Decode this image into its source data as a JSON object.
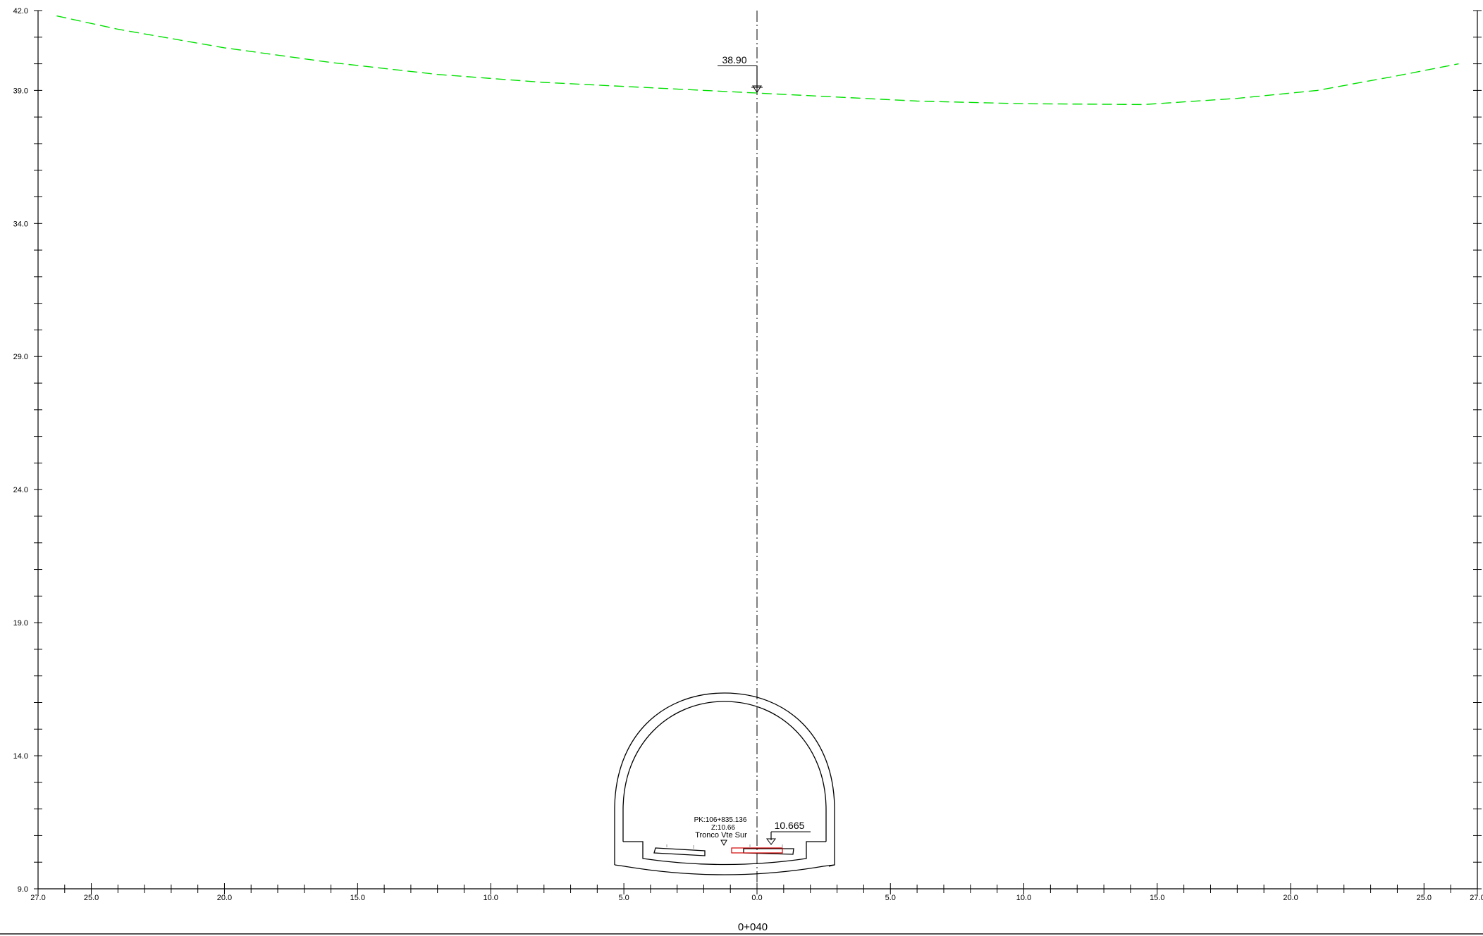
{
  "section": {
    "station": "0+040",
    "y_axis": {
      "min": 9.0,
      "max": 42.0,
      "labels": [
        "42.0",
        "39.0",
        "34.0",
        "29.0",
        "24.0",
        "19.0",
        "14.0",
        "9.0"
      ],
      "label_values": [
        42.0,
        39.0,
        34.0,
        29.0,
        24.0,
        19.0,
        14.0,
        9.0
      ],
      "minor_step": 1.0
    },
    "x_axis": {
      "min": -27.0,
      "max": 27.0,
      "labels": [
        "27.0",
        "25.0",
        "20.0",
        "15.0",
        "10.0",
        "5.0",
        "0.0",
        "5.0",
        "10.0",
        "15.0",
        "20.0",
        "25.0",
        "27.0"
      ],
      "label_values": [
        -27,
        -25,
        -20,
        -15,
        -10,
        -5,
        0,
        5,
        10,
        15,
        20,
        25,
        27
      ],
      "minor_step": 1.0
    },
    "terrain": {
      "color": "#00e000",
      "style": "dashed",
      "x": [
        -26.3,
        -24,
        -20,
        -16,
        -12,
        -8,
        -4,
        0,
        3,
        6,
        10,
        14.5,
        18,
        21,
        24,
        26.3
      ],
      "y": [
        41.8,
        41.3,
        40.6,
        40.05,
        39.6,
        39.3,
        39.1,
        38.9,
        38.75,
        38.6,
        38.5,
        38.47,
        38.7,
        39.0,
        39.55,
        40.0
      ]
    },
    "ground_level_marker": {
      "label": "38.90",
      "value": 38.9,
      "x": 0.0
    },
    "rail_level_marker": {
      "label": "10.665",
      "value": 10.665,
      "x": 0.5
    },
    "alignment_info": {
      "pk": "PK:106+835.136",
      "z": "Z:10.66",
      "name": "Tronco Vte Sur"
    },
    "tunnel": {
      "outline_color": "#000000",
      "highlight_color": "#d40000"
    }
  }
}
